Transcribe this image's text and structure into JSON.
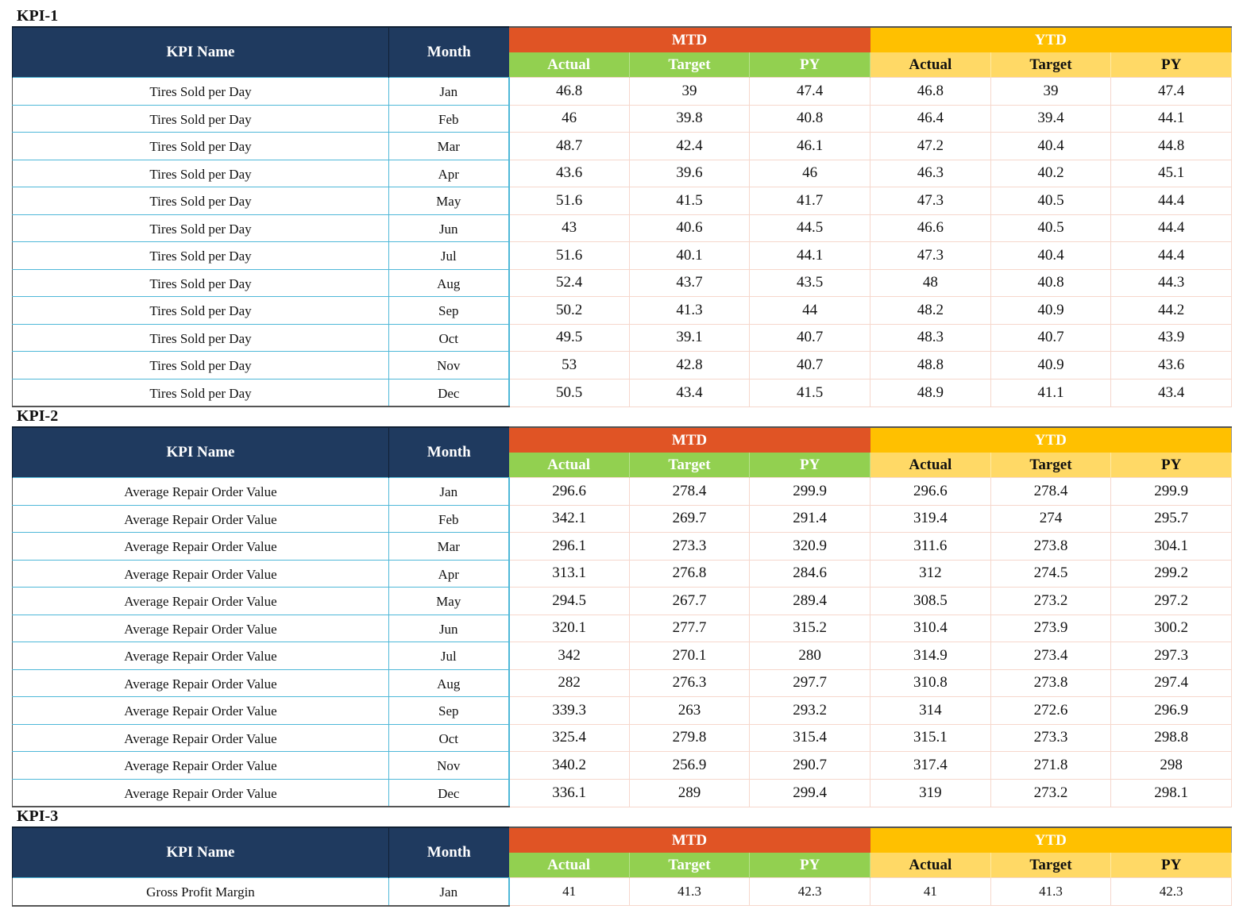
{
  "headers": {
    "kpi_name": "KPI Name",
    "month": "Month",
    "mtd": "MTD",
    "ytd": "YTD",
    "actual": "Actual",
    "target": "Target",
    "py": "PY"
  },
  "kpis": [
    {
      "title": "KPI-1",
      "rows": [
        {
          "name": "Tires Sold per Day",
          "month": "Jan",
          "mtd": [
            "46.8",
            "39",
            "47.4"
          ],
          "ytd": [
            "46.8",
            "39",
            "47.4"
          ]
        },
        {
          "name": "Tires Sold per Day",
          "month": "Feb",
          "mtd": [
            "46",
            "39.8",
            "40.8"
          ],
          "ytd": [
            "46.4",
            "39.4",
            "44.1"
          ]
        },
        {
          "name": "Tires Sold per Day",
          "month": "Mar",
          "mtd": [
            "48.7",
            "42.4",
            "46.1"
          ],
          "ytd": [
            "47.2",
            "40.4",
            "44.8"
          ]
        },
        {
          "name": "Tires Sold per Day",
          "month": "Apr",
          "mtd": [
            "43.6",
            "39.6",
            "46"
          ],
          "ytd": [
            "46.3",
            "40.2",
            "45.1"
          ]
        },
        {
          "name": "Tires Sold per Day",
          "month": "May",
          "mtd": [
            "51.6",
            "41.5",
            "41.7"
          ],
          "ytd": [
            "47.3",
            "40.5",
            "44.4"
          ]
        },
        {
          "name": "Tires Sold per Day",
          "month": "Jun",
          "mtd": [
            "43",
            "40.6",
            "44.5"
          ],
          "ytd": [
            "46.6",
            "40.5",
            "44.4"
          ]
        },
        {
          "name": "Tires Sold per Day",
          "month": "Jul",
          "mtd": [
            "51.6",
            "40.1",
            "44.1"
          ],
          "ytd": [
            "47.3",
            "40.4",
            "44.4"
          ]
        },
        {
          "name": "Tires Sold per Day",
          "month": "Aug",
          "mtd": [
            "52.4",
            "43.7",
            "43.5"
          ],
          "ytd": [
            "48",
            "40.8",
            "44.3"
          ]
        },
        {
          "name": "Tires Sold per Day",
          "month": "Sep",
          "mtd": [
            "50.2",
            "41.3",
            "44"
          ],
          "ytd": [
            "48.2",
            "40.9",
            "44.2"
          ]
        },
        {
          "name": "Tires Sold per Day",
          "month": "Oct",
          "mtd": [
            "49.5",
            "39.1",
            "40.7"
          ],
          "ytd": [
            "48.3",
            "40.7",
            "43.9"
          ]
        },
        {
          "name": "Tires Sold per Day",
          "month": "Nov",
          "mtd": [
            "53",
            "42.8",
            "40.7"
          ],
          "ytd": [
            "48.8",
            "40.9",
            "43.6"
          ]
        },
        {
          "name": "Tires Sold per Day",
          "month": "Dec",
          "mtd": [
            "50.5",
            "43.4",
            "41.5"
          ],
          "ytd": [
            "48.9",
            "41.1",
            "43.4"
          ]
        }
      ]
    },
    {
      "title": "KPI-2",
      "rows": [
        {
          "name": "Average Repair Order Value",
          "month": "Jan",
          "mtd": [
            "296.6",
            "278.4",
            "299.9"
          ],
          "ytd": [
            "296.6",
            "278.4",
            "299.9"
          ]
        },
        {
          "name": "Average Repair Order Value",
          "month": "Feb",
          "mtd": [
            "342.1",
            "269.7",
            "291.4"
          ],
          "ytd": [
            "319.4",
            "274",
            "295.7"
          ]
        },
        {
          "name": "Average Repair Order Value",
          "month": "Mar",
          "mtd": [
            "296.1",
            "273.3",
            "320.9"
          ],
          "ytd": [
            "311.6",
            "273.8",
            "304.1"
          ]
        },
        {
          "name": "Average Repair Order Value",
          "month": "Apr",
          "mtd": [
            "313.1",
            "276.8",
            "284.6"
          ],
          "ytd": [
            "312",
            "274.5",
            "299.2"
          ]
        },
        {
          "name": "Average Repair Order Value",
          "month": "May",
          "mtd": [
            "294.5",
            "267.7",
            "289.4"
          ],
          "ytd": [
            "308.5",
            "273.2",
            "297.2"
          ]
        },
        {
          "name": "Average Repair Order Value",
          "month": "Jun",
          "mtd": [
            "320.1",
            "277.7",
            "315.2"
          ],
          "ytd": [
            "310.4",
            "273.9",
            "300.2"
          ]
        },
        {
          "name": "Average Repair Order Value",
          "month": "Jul",
          "mtd": [
            "342",
            "270.1",
            "280"
          ],
          "ytd": [
            "314.9",
            "273.4",
            "297.3"
          ]
        },
        {
          "name": "Average Repair Order Value",
          "month": "Aug",
          "mtd": [
            "282",
            "276.3",
            "297.7"
          ],
          "ytd": [
            "310.8",
            "273.8",
            "297.4"
          ]
        },
        {
          "name": "Average Repair Order Value",
          "month": "Sep",
          "mtd": [
            "339.3",
            "263",
            "293.2"
          ],
          "ytd": [
            "314",
            "272.6",
            "296.9"
          ]
        },
        {
          "name": "Average Repair Order Value",
          "month": "Oct",
          "mtd": [
            "325.4",
            "279.8",
            "315.4"
          ],
          "ytd": [
            "315.1",
            "273.3",
            "298.8"
          ]
        },
        {
          "name": "Average Repair Order Value",
          "month": "Nov",
          "mtd": [
            "340.2",
            "256.9",
            "290.7"
          ],
          "ytd": [
            "317.4",
            "271.8",
            "298"
          ]
        },
        {
          "name": "Average Repair Order Value",
          "month": "Dec",
          "mtd": [
            "336.1",
            "289",
            "299.4"
          ],
          "ytd": [
            "319",
            "273.2",
            "298.1"
          ]
        }
      ]
    },
    {
      "title": "KPI-3",
      "rows": [
        {
          "name": "Gross Profit Margin",
          "month": "Jan",
          "mtd": [
            "41",
            "41.3",
            "42.3"
          ],
          "ytd": [
            "41",
            "41.3",
            "42.3"
          ]
        }
      ]
    }
  ]
}
